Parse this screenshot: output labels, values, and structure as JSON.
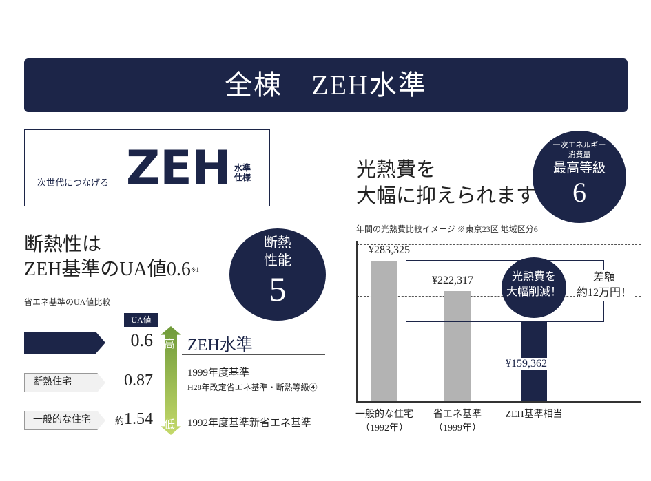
{
  "banner": {
    "title": "全棟　ZEH水準"
  },
  "zeh_box": {
    "subtitle": "次世代につなげる",
    "logo": "ZEH",
    "suffix1": "水準",
    "suffix2": "仕様"
  },
  "insulation": {
    "heading1": "断熱性は",
    "heading2": "ZEH基準のUA値0.6",
    "footnote": "※1",
    "caption": "省エネ基準のUA値比較",
    "badge": {
      "line1": "断熱",
      "line2": "性能",
      "grade": "5"
    },
    "ua_label": "UA値",
    "arrow_high": "高",
    "arrow_low": "低",
    "rows": [
      {
        "tag": "",
        "value": "0.6",
        "desc": "ZEH水準",
        "desc2": ""
      },
      {
        "tag": "断熱住宅",
        "value": "0.87",
        "desc": "1999年度基準",
        "desc2": "H28年改定省エネ基準・断熱等級④"
      },
      {
        "tag": "一般的な住宅",
        "value_prefix": "約",
        "value": "1.54",
        "desc": "1992年度基準新省エネ基準",
        "desc2": ""
      }
    ],
    "colors": {
      "navy": "#1c2548",
      "arrow_top": "#6f9a3a",
      "arrow_bottom": "#c4d96a"
    }
  },
  "cost": {
    "heading1": "光熱費を",
    "heading2": "大幅に抑えられます",
    "badge": {
      "line1": "一次エネルギー",
      "line2": "消費量",
      "line3": "最高等級",
      "grade": "6"
    },
    "bubble1": "光熱費を",
    "bubble2": "大幅削減！",
    "diff1": "差額",
    "diff2": "約12万円！"
  },
  "chart_data": {
    "type": "bar",
    "title": "年間の光熱費比較イメージ ※東京23区 地域区分6",
    "categories": [
      [
        "一般的な住宅",
        "（1992年）"
      ],
      [
        "省エネ基準",
        "（1999年）"
      ],
      [
        "ZEH基準相当",
        ""
      ]
    ],
    "values": [
      283325,
      222317,
      159362
    ],
    "data_labels": [
      "¥283,325",
      "¥222,317",
      "¥159,362"
    ],
    "colors": [
      "#b3b3b3",
      "#b3b3b3",
      "#1c2548"
    ],
    "ylim": [
      0,
      330000
    ],
    "grid": true
  }
}
